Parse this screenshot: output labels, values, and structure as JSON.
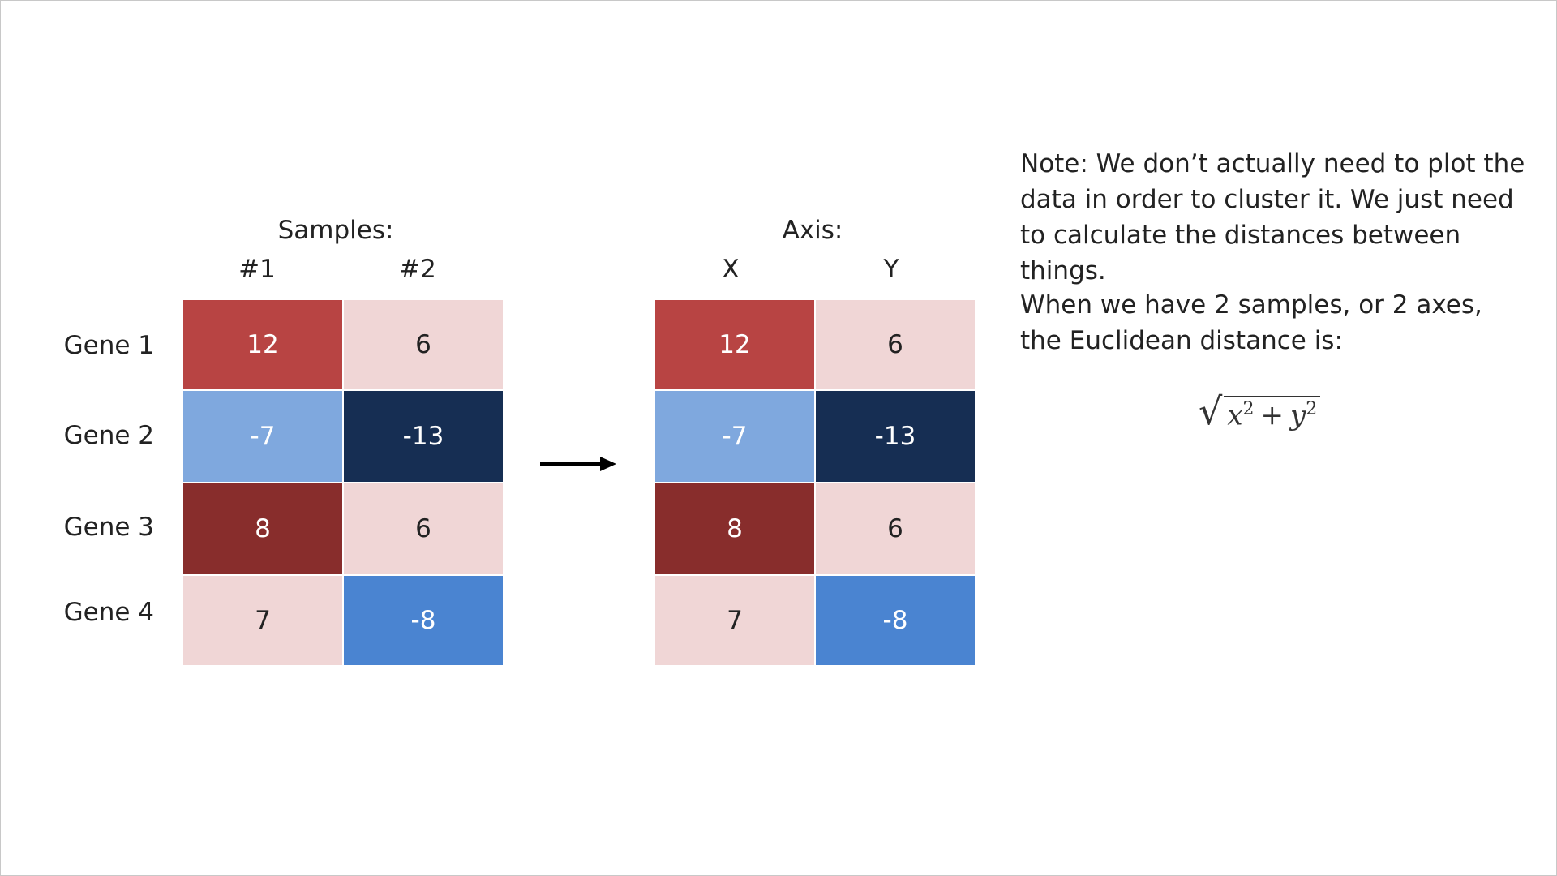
{
  "left_table": {
    "heading": "Samples:",
    "columns": [
      "#1",
      "#2"
    ],
    "rows": [
      {
        "label": "Gene 1",
        "values": [
          "12",
          "6"
        ]
      },
      {
        "label": "Gene 2",
        "values": [
          "-7",
          "-13"
        ]
      },
      {
        "label": "Gene 3",
        "values": [
          "8",
          "6"
        ]
      },
      {
        "label": "Gene 4",
        "values": [
          "7",
          "-8"
        ]
      }
    ]
  },
  "right_table": {
    "heading": "Axis:",
    "columns": [
      "X",
      "Y"
    ],
    "rows": [
      {
        "values": [
          "12",
          "6"
        ]
      },
      {
        "values": [
          "-7",
          "-13"
        ]
      },
      {
        "values": [
          "8",
          "6"
        ]
      },
      {
        "values": [
          "7",
          "-8"
        ]
      }
    ]
  },
  "cell_colors": {
    "12": "#b84443",
    "6": "#f0d6d6",
    "-7": "#7fa8de",
    "-13": "#162e53",
    "8": "#882d2c",
    "7": "#f0d6d6",
    "-8": "#4a84d1"
  },
  "note": {
    "paragraph1": "Note: We don’t actually need to plot the data in order to cluster it. We just need to calculate the distances between things.",
    "paragraph2": "When we have 2 samples, or 2 axes, the Euclidean distance is:"
  },
  "formula": {
    "x": "x",
    "y": "y",
    "exponent": "2",
    "operator": "+"
  }
}
